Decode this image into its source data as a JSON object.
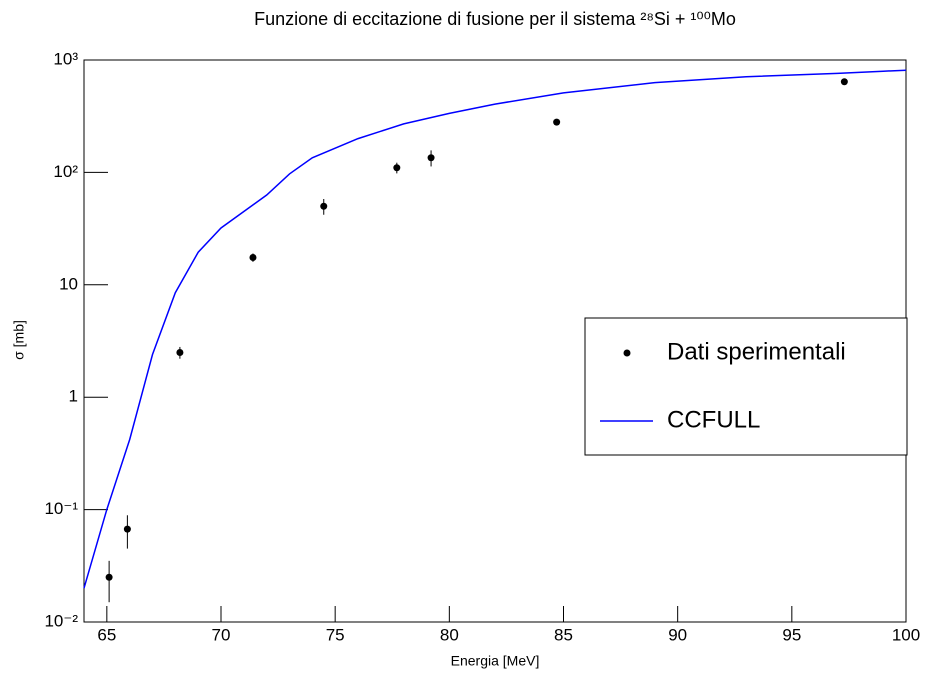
{
  "chart_data": {
    "type": "scatter-line",
    "title": "Funzione di eccitazione di fusione per il sistema ²⁸Si + ¹⁰⁰Mo",
    "x_label": "Energia [MeV]",
    "y_label": "σ [mb]",
    "xlim": [
      64,
      100
    ],
    "ylim": [
      0.01,
      1000
    ],
    "y_log": true,
    "xticks": [
      65,
      70,
      75,
      80,
      85,
      90,
      95,
      100
    ],
    "yticks": [
      {
        "value": 0.01,
        "label": "10⁻²"
      },
      {
        "value": 0.1,
        "label": "10⁻¹"
      },
      1,
      10,
      {
        "value": 100,
        "label": "10²"
      },
      {
        "value": 1000,
        "label": "10³"
      }
    ],
    "legend_position": "right",
    "series": [
      {
        "name": "Dati sperimentali",
        "kind": "points",
        "color": "#000000",
        "x": [
          65.1,
          65.9,
          68.2,
          71.4,
          74.5,
          77.7,
          79.2,
          84.7,
          97.3
        ],
        "values": [
          0.025,
          0.067,
          2.5,
          17.5,
          50,
          110,
          135,
          280,
          640
        ],
        "errors": [
          0.01,
          0.022,
          0.3,
          1.5,
          8,
          12,
          22,
          10,
          20
        ]
      },
      {
        "name": "CCFULL",
        "kind": "line",
        "color": "#0000ff",
        "x": [
          64,
          65,
          66,
          67,
          68,
          69,
          70,
          72,
          73,
          74,
          76,
          78,
          80,
          82,
          85,
          89,
          93,
          97,
          99,
          100
        ],
        "values": [
          0.02,
          0.1,
          0.42,
          2.4,
          8.5,
          19.5,
          32,
          63,
          97,
          135,
          200,
          270,
          335,
          405,
          510,
          630,
          710,
          760,
          795,
          810
        ]
      }
    ]
  }
}
